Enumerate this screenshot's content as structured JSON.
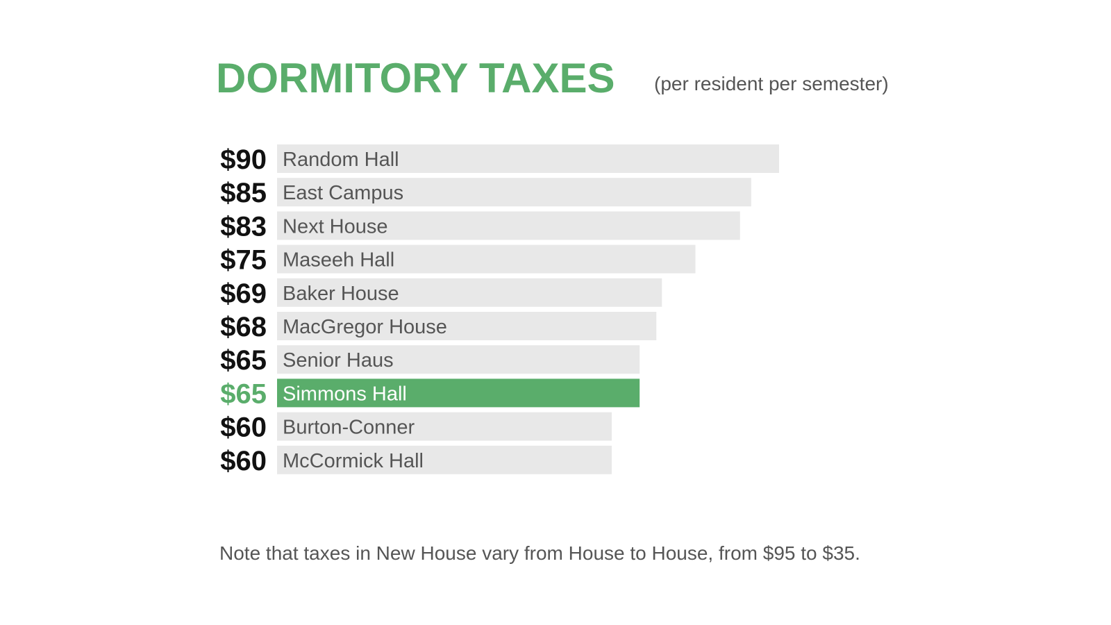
{
  "chart_data": {
    "type": "bar",
    "orientation": "horizontal",
    "title": "DORMITORY TAXES",
    "subtitle": "(per resident per semester)",
    "categories": [
      "Random Hall",
      "East Campus",
      "Next House",
      "Maseeh Hall",
      "Baker House",
      "MacGregor House",
      "Senior Haus",
      "Simmons Hall",
      "Burton-Conner",
      "McCormick Hall"
    ],
    "values": [
      90,
      85,
      83,
      75,
      69,
      68,
      65,
      65,
      60,
      60
    ],
    "value_labels": [
      "$90",
      "$85",
      "$83",
      "$75",
      "$69",
      "$68",
      "$65",
      "$65",
      "$60",
      "$60"
    ],
    "highlighted_category": "Simmons Hall",
    "xlim": [
      0,
      90
    ],
    "grid": false,
    "legend": "none",
    "note": "Note that taxes in New House vary from House to House, from $95 to $35."
  },
  "colors": {
    "accent": "#5aad6b",
    "bar": "#e8e8e8",
    "bar_text": "#555555",
    "value_text": "#111111",
    "subtitle_text": "#555555",
    "highlight_text": "#ffffff"
  }
}
